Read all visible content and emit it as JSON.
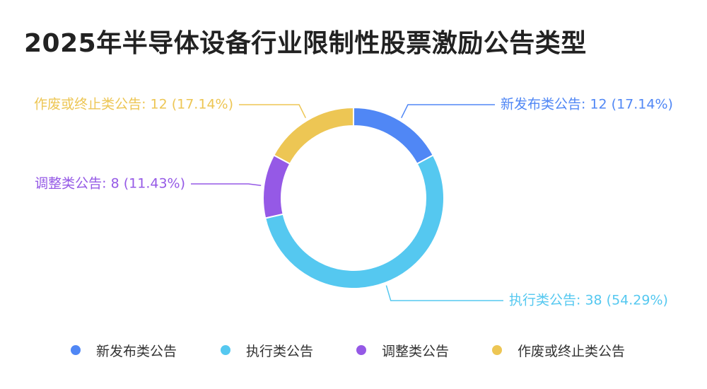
{
  "chart_data": {
    "type": "pie",
    "title": "2025年半导体设备行业限制性股票激励公告类型",
    "categories": [
      "新发布类公告",
      "执行类公告",
      "调整类公告",
      "作废或终止类公告"
    ],
    "values": [
      12,
      38,
      8,
      12
    ],
    "percents": [
      "17.14%",
      "54.29%",
      "11.43%",
      "17.14%"
    ],
    "data_labels": [
      "新发布类公告: 12 (17.14%)",
      "执行类公告: 38 (54.29%)",
      "调整类公告: 8 (11.43%)",
      "作废或终止类公告: 12 (17.14%)"
    ],
    "colors": [
      "#5087F5",
      "#55C8F0",
      "#9559E6",
      "#EDC654"
    ],
    "donut": true,
    "legend_position": "bottom"
  }
}
